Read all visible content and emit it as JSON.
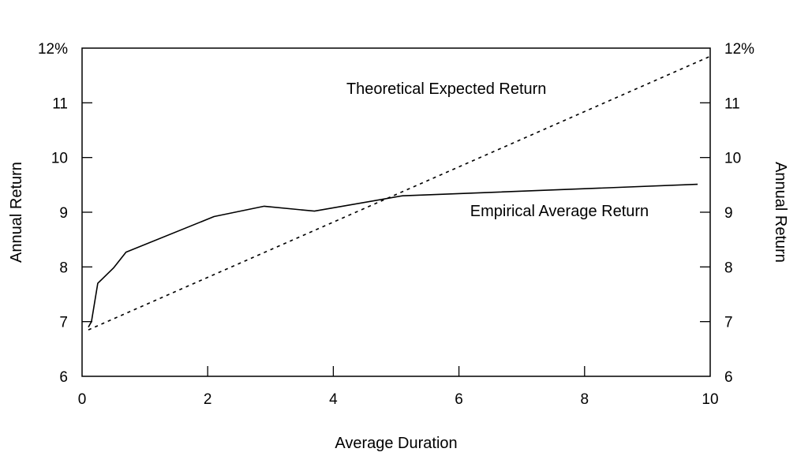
{
  "chart_data": {
    "type": "line",
    "xlabel": "Average Duration",
    "ylabel_left": "Annual Return",
    "ylabel_right": "Annual Return",
    "xlim": [
      0,
      10
    ],
    "ylim": [
      6,
      12
    ],
    "x_ticks": [
      "0",
      "2",
      "4",
      "6",
      "8",
      "10"
    ],
    "y_ticks": [
      "6",
      "7",
      "8",
      "9",
      "10",
      "11",
      "12%"
    ],
    "grid": false,
    "series": [
      {
        "name": "Empirical Average Return",
        "style": "solid",
        "points": [
          [
            0.1,
            6.9
          ],
          [
            0.15,
            7.0
          ],
          [
            0.25,
            7.7
          ],
          [
            0.5,
            7.98
          ],
          [
            0.7,
            8.27
          ],
          [
            2.1,
            8.92
          ],
          [
            2.9,
            9.11
          ],
          [
            3.7,
            9.02
          ],
          [
            5.1,
            9.3
          ],
          [
            9.8,
            9.51
          ]
        ]
      },
      {
        "name": "Theoretical Expected Return",
        "style": "dotted",
        "points": [
          [
            0.1,
            6.85
          ],
          [
            10.0,
            11.85
          ]
        ]
      }
    ],
    "annotations": [
      {
        "text": "Theoretical Expected Return",
        "x": 5.8,
        "y": 11.16
      },
      {
        "text": "Empirical Average Return",
        "x": 7.6,
        "y": 8.93
      }
    ]
  }
}
